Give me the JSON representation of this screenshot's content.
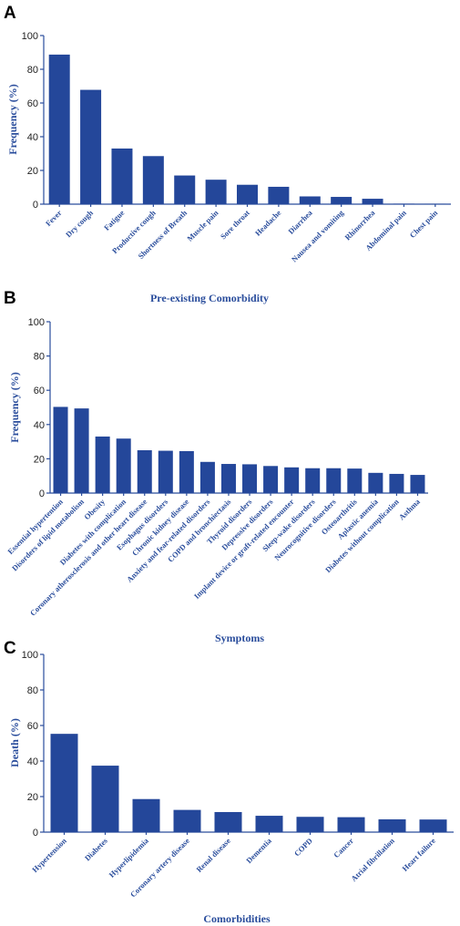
{
  "colors": {
    "bar": "#24479a",
    "axis": "#2a4d9c"
  },
  "chart_data": [
    {
      "type": "bar",
      "panel": "A",
      "title": "",
      "ylabel": "Frequency (%)",
      "xlabel": "",
      "ylim": [
        0,
        100
      ],
      "yticks": [
        0,
        20,
        40,
        60,
        80,
        100
      ],
      "categories": [
        "Fever",
        "Dry cough",
        "Fatigue",
        "Productive cough",
        "Shortness of Breath",
        "Muscle pain",
        "Sore throat",
        "Headache",
        "Diarrhea",
        "Nausea and vomiting",
        "Rhinorrhea",
        "Abdominal pain",
        "Chest pain"
      ],
      "values": [
        88.7,
        67.8,
        33.0,
        28.5,
        17.0,
        14.5,
        11.5,
        10.3,
        4.6,
        4.3,
        3.2,
        0.3,
        0.2
      ]
    },
    {
      "type": "bar",
      "panel": "B",
      "title": "Pre-existing Comorbidity",
      "ylabel": "Frequency (%)",
      "xlabel": "Symptoms",
      "ylim": [
        0,
        100
      ],
      "yticks": [
        0,
        20,
        40,
        60,
        80,
        100
      ],
      "categories": [
        "Essential hypertention",
        "Disorders of lipid metabolism",
        "Obesity",
        "Diabetes with complication",
        "Coronary atherosclerosis and other heart disease",
        "Esophagus disorders",
        "Chronic kidney disease",
        "Anxiety and fear-related disorders",
        "COPD and bronchiectasis",
        "Thyroid disorders",
        "Depressive disorders",
        "Implant device or graft-related encounter",
        "Sleep-wake disorders",
        "Neurocognitive disorders",
        "Osteoarthritis",
        "Aplastic anemia",
        "Diabetes without complication",
        "Asthma"
      ],
      "values": [
        50.3,
        49.4,
        33.0,
        31.8,
        25.0,
        24.7,
        24.5,
        18.2,
        17.0,
        16.8,
        15.8,
        15.0,
        14.5,
        14.5,
        14.3,
        11.8,
        11.2,
        10.6
      ]
    },
    {
      "type": "bar",
      "panel": "C",
      "title": "",
      "ylabel": "Death (%)",
      "xlabel": "Comorbidities",
      "ylim": [
        0,
        100
      ],
      "yticks": [
        0,
        20,
        40,
        60,
        80,
        100
      ],
      "categories": [
        "Hypertension",
        "Diabetes",
        "Hyperlipidemia",
        "Coronary artery disease",
        "Renal disease",
        "Dementia",
        "COPD",
        "Cancer",
        "Atrial fibrillation",
        "Heart failure"
      ],
      "values": [
        55.3,
        37.4,
        18.6,
        12.5,
        11.3,
        9.2,
        8.6,
        8.4,
        7.2,
        7.1
      ]
    }
  ]
}
